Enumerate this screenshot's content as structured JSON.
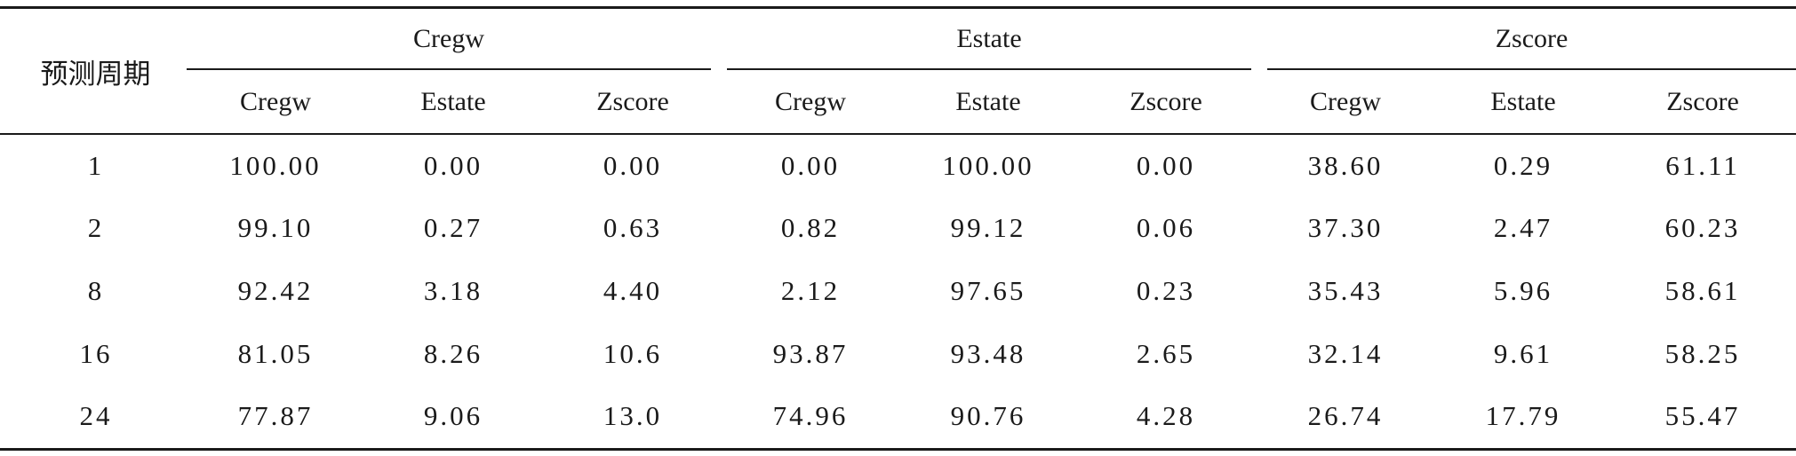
{
  "table": {
    "row_header": "预测周期",
    "groups": [
      "Cregw",
      "Estate",
      "Zscore"
    ],
    "sub_headers": [
      "Cregw",
      "Estate",
      "Zscore",
      "Cregw",
      "Estate",
      "Zscore",
      "Cregw",
      "Estate",
      "Zscore"
    ],
    "rows": [
      {
        "period": "1",
        "values": [
          "100.00",
          "0.00",
          "0.00",
          "0.00",
          "100.00",
          "0.00",
          "38.60",
          "0.29",
          "61.11"
        ]
      },
      {
        "period": "2",
        "values": [
          "99.10",
          "0.27",
          "0.63",
          "0.82",
          "99.12",
          "0.06",
          "37.30",
          "2.47",
          "60.23"
        ]
      },
      {
        "period": "8",
        "values": [
          "92.42",
          "3.18",
          "4.40",
          "2.12",
          "97.65",
          "0.23",
          "35.43",
          "5.96",
          "58.61"
        ]
      },
      {
        "period": "16",
        "values": [
          "81.05",
          "8.26",
          "10.6",
          "93.87",
          "93.48",
          "2.65",
          "32.14",
          "9.61",
          "58.25"
        ]
      },
      {
        "period": "24",
        "values": [
          "77.87",
          "9.06",
          "13.0",
          "74.96",
          "90.76",
          "4.28",
          "26.74",
          "17.79",
          "55.47"
        ]
      }
    ]
  }
}
